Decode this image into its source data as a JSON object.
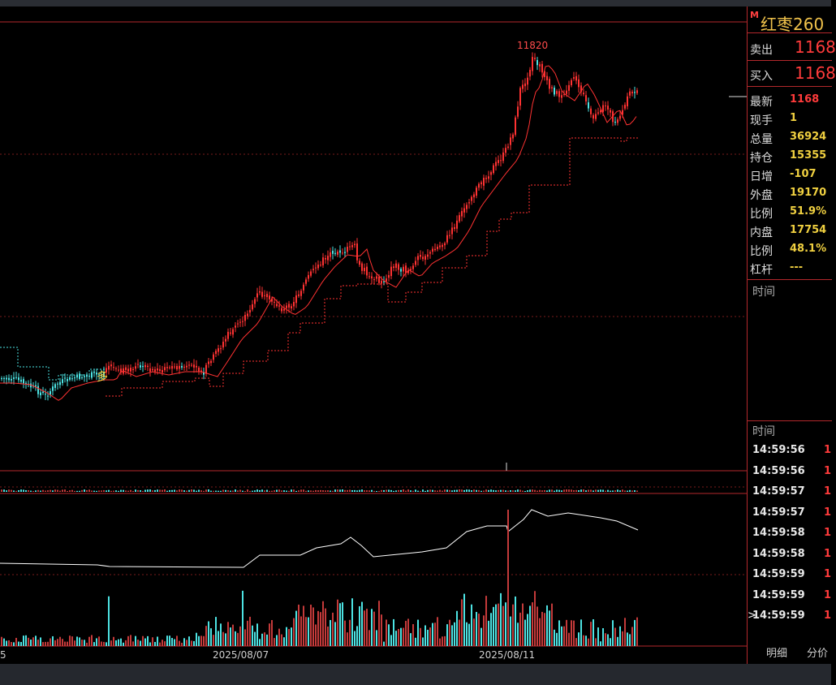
{
  "instrument": {
    "title": "红枣260",
    "mark": "M"
  },
  "quote": {
    "sell": {
      "label": "卖出",
      "value": "1168"
    },
    "buy": {
      "label": "买入",
      "value": "1168"
    },
    "rows": [
      {
        "label": "最新",
        "value": "1168",
        "color": "#ff3b3b"
      },
      {
        "label": "现手",
        "value": "1",
        "color": "#f0d040"
      },
      {
        "label": "总量",
        "value": "36924",
        "color": "#f0d040"
      },
      {
        "label": "持仓",
        "value": "15355",
        "color": "#f0d040"
      },
      {
        "label": "日增",
        "value": "-107",
        "color": "#f0d040"
      },
      {
        "label": "外盘",
        "value": "19170",
        "color": "#f0d040"
      },
      {
        "label": "比例",
        "value": "51.9%",
        "color": "#f0d040"
      },
      {
        "label": "内盘",
        "value": "17754",
        "color": "#f0d040"
      },
      {
        "label": "比例",
        "value": "48.1%",
        "color": "#f0d040"
      },
      {
        "label": "杠杆",
        "value": "---",
        "color": "#f0d040"
      }
    ]
  },
  "time_section_label": "时间",
  "tick_list": {
    "header": "时间",
    "rows": [
      {
        "time": "14:59:56",
        "value": "1"
      },
      {
        "time": "14:59:56",
        "value": "1"
      },
      {
        "time": "14:59:57",
        "value": "1"
      },
      {
        "time": "14:59:57",
        "value": "1"
      },
      {
        "time": "14:59:58",
        "value": "1"
      },
      {
        "time": "14:59:58",
        "value": "1"
      },
      {
        "time": "14:59:59",
        "value": "1"
      },
      {
        "time": "14:59:59",
        "value": "1"
      },
      {
        "time": "14:59:59",
        "value": "1",
        "selected": true
      }
    ]
  },
  "tabs": [
    "明细",
    "分价"
  ],
  "chart": {
    "peak_label": "11820",
    "signal_label": "多",
    "date_labels": [
      "5",
      "2025/08/07",
      "2025/08/11"
    ]
  },
  "chart_data": {
    "type": "candlestick",
    "peak": 11820,
    "x_ticks": [
      "2025/08/07",
      "2025/08/11"
    ],
    "colors": {
      "up": "#ff3232",
      "down": "#4de3e3",
      "ma": "#ff3232",
      "stop": "#ff3232",
      "volume_line": "#ffffff"
    }
  }
}
